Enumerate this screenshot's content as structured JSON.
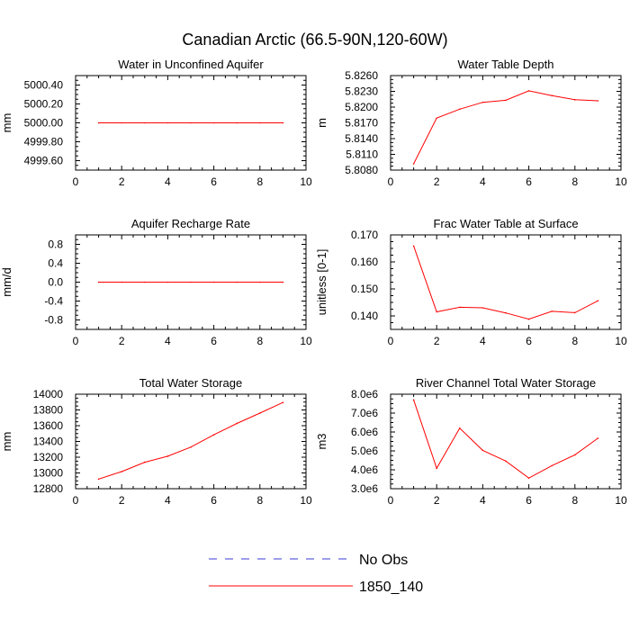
{
  "figure": {
    "title": "Canadian Arctic (66.5-90N,120-60W)",
    "legend": [
      {
        "label": "No Obs",
        "color": "#3b3bd6",
        "dashed": true
      },
      {
        "label": "1850_140",
        "color": "#ff0000",
        "dashed": false
      }
    ]
  },
  "chart_data": [
    {
      "type": "line",
      "title": "Water in Unconfined Aquifer",
      "xlabel": "",
      "ylabel": "mm",
      "xlim": [
        0,
        10
      ],
      "ylim": [
        4999.5,
        5000.5
      ],
      "xticks": [
        0,
        2,
        4,
        6,
        8,
        10
      ],
      "yticks": [
        4999.6,
        4999.8,
        5000.0,
        5000.2,
        5000.4
      ],
      "yticklabels": [
        "4999.60",
        "4999.80",
        "5000.00",
        "5000.20",
        "5000.40"
      ],
      "series": [
        {
          "name": "1850_140",
          "x": [
            1,
            2,
            3,
            4,
            5,
            6,
            7,
            8,
            9
          ],
          "values": [
            5000,
            5000,
            5000,
            5000,
            5000,
            5000,
            5000,
            5000,
            5000
          ]
        }
      ]
    },
    {
      "type": "line",
      "title": "Water Table Depth",
      "xlabel": "",
      "ylabel": "m",
      "xlim": [
        0,
        10
      ],
      "ylim": [
        5.808,
        5.826
      ],
      "xticks": [
        0,
        2,
        4,
        6,
        8,
        10
      ],
      "yticks": [
        5.808,
        5.811,
        5.814,
        5.817,
        5.82,
        5.823,
        5.826
      ],
      "yticklabels": [
        "5.8080",
        "5.8110",
        "5.8140",
        "5.8170",
        "5.8200",
        "5.8230",
        "5.8260"
      ],
      "series": [
        {
          "name": "1850_140",
          "x": [
            1,
            2,
            3,
            4,
            5,
            6,
            7,
            8,
            9
          ],
          "values": [
            5.8092,
            5.8179,
            5.8196,
            5.8209,
            5.8213,
            5.8231,
            5.8222,
            5.8214,
            5.8212
          ]
        }
      ]
    },
    {
      "type": "line",
      "title": "Aquifer Recharge Rate",
      "xlabel": "",
      "ylabel": "mm/d",
      "xlim": [
        0,
        10
      ],
      "ylim": [
        -1.0,
        1.0
      ],
      "xticks": [
        0,
        2,
        4,
        6,
        8,
        10
      ],
      "yticks": [
        -0.8,
        -0.4,
        0.0,
        0.4,
        0.8
      ],
      "yticklabels": [
        "-0.8",
        "-0.4",
        "0.0",
        "0.4",
        "0.8"
      ],
      "series": [
        {
          "name": "1850_140",
          "x": [
            1,
            2,
            3,
            4,
            5,
            6,
            7,
            8,
            9
          ],
          "values": [
            0,
            0,
            0,
            0,
            0,
            0,
            0,
            0,
            0
          ]
        }
      ]
    },
    {
      "type": "line",
      "title": "Frac Water Table at Surface",
      "xlabel": "",
      "ylabel": "unitless [0-1]",
      "xlim": [
        0,
        10
      ],
      "ylim": [
        0.135,
        0.17
      ],
      "xticks": [
        0,
        2,
        4,
        6,
        8,
        10
      ],
      "yticks": [
        0.14,
        0.15,
        0.16,
        0.17
      ],
      "yticklabels": [
        "0.140",
        "0.150",
        "0.160",
        "0.170"
      ],
      "series": [
        {
          "name": "1850_140",
          "x": [
            1,
            2,
            3,
            4,
            5,
            6,
            7,
            8,
            9
          ],
          "values": [
            0.1659,
            0.1415,
            0.1432,
            0.143,
            0.1411,
            0.1388,
            0.1417,
            0.1412,
            0.1456
          ]
        }
      ]
    },
    {
      "type": "line",
      "title": "Total Water Storage",
      "xlabel": "",
      "ylabel": "mm",
      "xlim": [
        0,
        10
      ],
      "ylim": [
        12800,
        14000
      ],
      "xticks": [
        0,
        2,
        4,
        6,
        8,
        10
      ],
      "yticks": [
        12800,
        13000,
        13200,
        13400,
        13600,
        13800,
        14000
      ],
      "yticklabels": [
        "12800",
        "13000",
        "13200",
        "13400",
        "13600",
        "13800",
        "14000"
      ],
      "series": [
        {
          "name": "1850_140",
          "x": [
            1,
            2,
            3,
            4,
            5,
            6,
            7,
            8,
            9
          ],
          "values": [
            12922,
            13017,
            13136,
            13212,
            13328,
            13484,
            13629,
            13760,
            13895
          ]
        }
      ]
    },
    {
      "type": "line",
      "title": "River Channel Total Water Storage",
      "xlabel": "",
      "ylabel": "m3",
      "xlim": [
        0,
        10
      ],
      "ylim": [
        3000000,
        8000000
      ],
      "xticks": [
        0,
        2,
        4,
        6,
        8,
        10
      ],
      "yticks": [
        3000000,
        4000000,
        5000000,
        6000000,
        7000000,
        8000000
      ],
      "yticklabels": [
        "3.0e6",
        "4.0e6",
        "5.0e6",
        "6.0e6",
        "7.0e6",
        "8.0e6"
      ],
      "series": [
        {
          "name": "1850_140",
          "x": [
            1,
            2,
            3,
            4,
            5,
            6,
            7,
            8,
            9
          ],
          "values": [
            7700000,
            4080000,
            6200000,
            5030000,
            4460000,
            3560000,
            4220000,
            4790000,
            5670000
          ]
        }
      ]
    }
  ]
}
